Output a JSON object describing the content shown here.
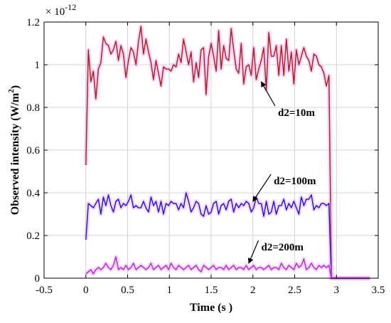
{
  "chart_data": {
    "type": "line",
    "xlabel": "Time (s )",
    "ylabel_main": "Observed intensity (W/m",
    "ylabel_sup": "2",
    "ylabel_close": ")",
    "y_multiplier_base": "× 10",
    "y_multiplier_exp": "-12",
    "xlim": [
      -0.5,
      3.5
    ],
    "ylim": [
      0,
      1.2
    ],
    "xticks": [
      -0.5,
      0,
      0.5,
      1,
      1.5,
      2,
      2.5,
      3,
      3.5
    ],
    "xtick_labels": [
      "-0.5",
      "0",
      "0.5",
      "1",
      "1.5",
      "2",
      "2.5",
      "3",
      "3.5"
    ],
    "yticks": [
      0,
      0.2,
      0.4,
      0.6,
      0.8,
      1,
      1.2
    ],
    "ytick_labels": [
      "0",
      "0.2",
      "0.4",
      "0.6",
      "0.8",
      "1",
      "1.2"
    ],
    "grid": true,
    "colors": {
      "d2_10m": "#b22222",
      "d2_100m": "#1f1fd0",
      "d2_200m": "#b030d0",
      "shade": "#f08cf0"
    },
    "annotations": [
      {
        "text": "d2=10m",
        "xy": [
          2.1,
          0.92
        ],
        "text_at": [
          2.3,
          0.78
        ]
      },
      {
        "text": "d2=100m",
        "xy": [
          2.0,
          0.36
        ],
        "text_at": [
          2.25,
          0.46
        ]
      },
      {
        "text": "d2=200m",
        "xy": [
          1.95,
          0.07
        ],
        "text_at": [
          2.1,
          0.15
        ]
      }
    ],
    "series": [
      {
        "key": "d2_10m",
        "x": [
          0,
          0.03,
          0.06,
          0.09,
          0.12,
          0.15,
          0.18,
          0.21,
          0.24,
          0.27,
          0.3,
          0.33,
          0.36,
          0.39,
          0.42,
          0.45,
          0.48,
          0.51,
          0.54,
          0.57,
          0.6,
          0.63,
          0.66,
          0.69,
          0.72,
          0.75,
          0.78,
          0.81,
          0.84,
          0.87,
          0.9,
          0.93,
          0.96,
          0.99,
          1.02,
          1.05,
          1.08,
          1.11,
          1.14,
          1.17,
          1.2,
          1.23,
          1.26,
          1.29,
          1.32,
          1.35,
          1.38,
          1.41,
          1.44,
          1.47,
          1.5,
          1.53,
          1.56,
          1.59,
          1.62,
          1.65,
          1.68,
          1.71,
          1.74,
          1.77,
          1.8,
          1.83,
          1.86,
          1.89,
          1.92,
          1.95,
          1.98,
          2.01,
          2.04,
          2.07,
          2.1,
          2.13,
          2.16,
          2.19,
          2.22,
          2.25,
          2.28,
          2.31,
          2.34,
          2.37,
          2.4,
          2.43,
          2.46,
          2.49,
          2.52,
          2.55,
          2.58,
          2.61,
          2.64,
          2.67,
          2.7,
          2.73,
          2.76,
          2.79,
          2.82,
          2.85,
          2.88,
          2.91,
          2.94,
          2.97,
          3.0,
          3.03,
          3.06,
          3.2,
          3.4
        ],
        "y": [
          0.53,
          1.07,
          0.92,
          0.97,
          0.84,
          0.98,
          1.01,
          1.13,
          1.1,
          1.09,
          1.05,
          1.07,
          1.11,
          1.02,
          1.09,
          1.05,
          0.94,
          1.02,
          1.08,
          1.06,
          1.0,
          1.11,
          1.18,
          1.05,
          1.12,
          1.06,
          1.01,
          0.93,
          1.02,
          0.96,
          0.9,
          0.99,
          0.98,
          0.98,
          0.97,
          1.0,
          0.99,
          1.05,
          1.01,
          1.12,
          1.06,
          1.0,
          1.06,
          0.92,
          1.01,
          0.94,
          1.07,
          1.08,
          0.86,
          1.04,
          1.1,
          1.04,
          0.97,
          1.16,
          0.98,
          1.09,
          1.03,
          1.02,
          1.17,
          1.07,
          0.98,
          0.96,
          1.1,
          0.91,
          0.99,
          1.0,
          0.95,
          1.08,
          0.93,
          0.98,
          1.02,
          1.08,
          0.88,
          1.15,
          1.04,
          1.04,
          1.09,
          0.95,
          1.09,
          0.95,
          1.12,
          0.97,
          1.06,
          0.91,
          1.07,
          1.0,
          1.04,
          1.08,
          1.04,
          1.02,
          0.97,
          1.05,
          1.04,
          1.0,
          0.99,
          0.96,
          0.9,
          0.95,
          0.0,
          0.0,
          0.0,
          0.0,
          0.0,
          0.0,
          0.0
        ]
      },
      {
        "key": "d2_100m",
        "x": [
          0,
          0.03,
          0.06,
          0.09,
          0.12,
          0.15,
          0.18,
          0.21,
          0.24,
          0.27,
          0.3,
          0.33,
          0.36,
          0.39,
          0.42,
          0.45,
          0.48,
          0.51,
          0.54,
          0.57,
          0.6,
          0.63,
          0.66,
          0.69,
          0.72,
          0.75,
          0.78,
          0.81,
          0.84,
          0.87,
          0.9,
          0.93,
          0.96,
          0.99,
          1.02,
          1.05,
          1.08,
          1.11,
          1.14,
          1.17,
          1.2,
          1.23,
          1.26,
          1.29,
          1.32,
          1.35,
          1.38,
          1.41,
          1.44,
          1.47,
          1.5,
          1.53,
          1.56,
          1.59,
          1.62,
          1.65,
          1.68,
          1.71,
          1.74,
          1.77,
          1.8,
          1.83,
          1.86,
          1.89,
          1.92,
          1.95,
          1.98,
          2.01,
          2.04,
          2.07,
          2.1,
          2.13,
          2.16,
          2.19,
          2.22,
          2.25,
          2.28,
          2.31,
          2.34,
          2.37,
          2.4,
          2.43,
          2.46,
          2.49,
          2.52,
          2.55,
          2.58,
          2.61,
          2.64,
          2.67,
          2.7,
          2.73,
          2.76,
          2.79,
          2.82,
          2.85,
          2.88,
          2.91,
          2.94,
          2.97,
          3.0,
          3.03,
          3.06,
          3.2,
          3.4
        ],
        "y": [
          0.18,
          0.35,
          0.34,
          0.33,
          0.35,
          0.37,
          0.3,
          0.38,
          0.34,
          0.39,
          0.34,
          0.31,
          0.36,
          0.37,
          0.33,
          0.35,
          0.34,
          0.36,
          0.39,
          0.33,
          0.34,
          0.33,
          0.33,
          0.36,
          0.33,
          0.31,
          0.38,
          0.34,
          0.36,
          0.31,
          0.36,
          0.3,
          0.35,
          0.34,
          0.36,
          0.35,
          0.35,
          0.32,
          0.35,
          0.33,
          0.4,
          0.36,
          0.31,
          0.33,
          0.36,
          0.35,
          0.3,
          0.29,
          0.34,
          0.3,
          0.31,
          0.35,
          0.36,
          0.3,
          0.34,
          0.35,
          0.32,
          0.36,
          0.37,
          0.31,
          0.35,
          0.33,
          0.35,
          0.34,
          0.36,
          0.35,
          0.31,
          0.33,
          0.38,
          0.35,
          0.35,
          0.29,
          0.36,
          0.3,
          0.31,
          0.36,
          0.3,
          0.34,
          0.34,
          0.37,
          0.32,
          0.35,
          0.33,
          0.36,
          0.33,
          0.3,
          0.38,
          0.34,
          0.37,
          0.37,
          0.39,
          0.32,
          0.34,
          0.33,
          0.35,
          0.35,
          0.34,
          0.35,
          0.0,
          0.0,
          0.0,
          0.0,
          0.0,
          0.0,
          0.0
        ]
      },
      {
        "key": "d2_200m",
        "x": [
          0,
          0.03,
          0.06,
          0.09,
          0.12,
          0.15,
          0.18,
          0.21,
          0.24,
          0.27,
          0.3,
          0.33,
          0.36,
          0.39,
          0.42,
          0.45,
          0.48,
          0.51,
          0.54,
          0.57,
          0.6,
          0.63,
          0.66,
          0.69,
          0.72,
          0.75,
          0.78,
          0.81,
          0.84,
          0.87,
          0.9,
          0.93,
          0.96,
          0.99,
          1.02,
          1.05,
          1.08,
          1.11,
          1.14,
          1.17,
          1.2,
          1.23,
          1.26,
          1.29,
          1.32,
          1.35,
          1.38,
          1.41,
          1.44,
          1.47,
          1.5,
          1.53,
          1.56,
          1.59,
          1.62,
          1.65,
          1.68,
          1.71,
          1.74,
          1.77,
          1.8,
          1.83,
          1.86,
          1.89,
          1.92,
          1.95,
          1.98,
          2.01,
          2.04,
          2.07,
          2.1,
          2.13,
          2.16,
          2.19,
          2.22,
          2.25,
          2.28,
          2.31,
          2.34,
          2.37,
          2.4,
          2.43,
          2.46,
          2.49,
          2.52,
          2.55,
          2.58,
          2.61,
          2.64,
          2.67,
          2.7,
          2.73,
          2.76,
          2.79,
          2.82,
          2.85,
          2.88,
          2.91,
          2.94,
          2.97,
          3.0,
          3.03,
          3.06,
          3.2,
          3.4
        ],
        "y": [
          0.02,
          0.03,
          0.04,
          0.02,
          0.04,
          0.05,
          0.04,
          0.05,
          0.07,
          0.05,
          0.04,
          0.06,
          0.1,
          0.04,
          0.05,
          0.04,
          0.06,
          0.04,
          0.05,
          0.07,
          0.04,
          0.05,
          0.06,
          0.05,
          0.04,
          0.05,
          0.07,
          0.04,
          0.05,
          0.06,
          0.04,
          0.05,
          0.06,
          0.04,
          0.07,
          0.05,
          0.04,
          0.06,
          0.05,
          0.04,
          0.05,
          0.06,
          0.04,
          0.05,
          0.06,
          0.04,
          0.03,
          0.06,
          0.05,
          0.04,
          0.05,
          0.06,
          0.04,
          0.05,
          0.05,
          0.04,
          0.06,
          0.04,
          0.05,
          0.06,
          0.04,
          0.05,
          0.05,
          0.04,
          0.06,
          0.04,
          0.05,
          0.06,
          0.04,
          0.05,
          0.05,
          0.04,
          0.05,
          0.06,
          0.04,
          0.05,
          0.05,
          0.04,
          0.07,
          0.05,
          0.04,
          0.06,
          0.05,
          0.04,
          0.07,
          0.05,
          0.06,
          0.09,
          0.04,
          0.05,
          0.07,
          0.05,
          0.04,
          0.06,
          0.05,
          0.06,
          0.05,
          0.06,
          0.0,
          0.0,
          0.0,
          0.0,
          0.0,
          0.0,
          0.0
        ]
      }
    ]
  }
}
